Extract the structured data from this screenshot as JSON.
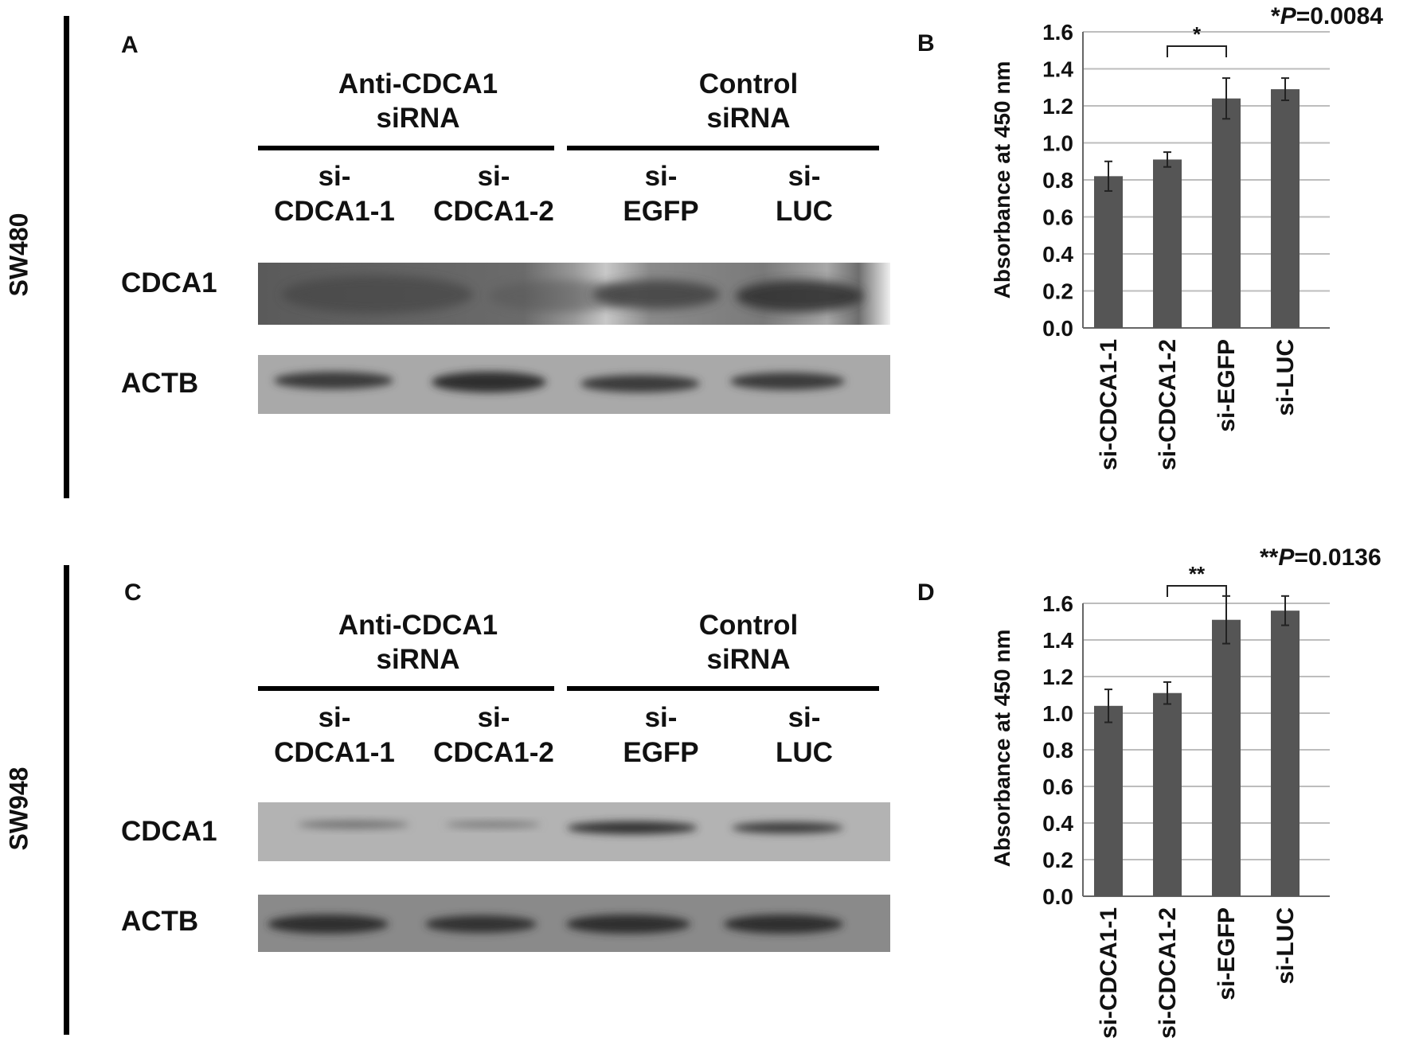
{
  "top": {
    "cell_line": "SW480",
    "panel_blot": "A",
    "panel_chart": "B",
    "group_left": [
      "Anti-CDCA1",
      "siRNA"
    ],
    "group_right": [
      "Control",
      "siRNA"
    ],
    "lanes": [
      [
        "si-",
        "CDCA1-1"
      ],
      [
        "si-",
        "CDCA1-2"
      ],
      [
        "si-",
        "EGFP"
      ],
      [
        "si-",
        "LUC"
      ]
    ],
    "rows": [
      "CDCA1",
      "ACTB"
    ],
    "pvalue": {
      "stars": "*",
      "p": "P",
      "rest": "=0.0084"
    },
    "bracket_label": "*"
  },
  "bottom": {
    "cell_line": "SW948",
    "panel_blot": "C",
    "panel_chart": "D",
    "group_left": [
      "Anti-CDCA1",
      "siRNA"
    ],
    "group_right": [
      "Control",
      "siRNA"
    ],
    "lanes": [
      [
        "si-",
        "CDCA1-1"
      ],
      [
        "si-",
        "CDCA1-2"
      ],
      [
        "si-",
        "EGFP"
      ],
      [
        "si-",
        "LUC"
      ]
    ],
    "rows": [
      "CDCA1",
      "ACTB"
    ],
    "pvalue": {
      "stars": "**",
      "p": "P",
      "rest": "=0.0136"
    },
    "bracket_label": "**"
  },
  "chart_data": [
    {
      "type": "bar",
      "panel": "B",
      "categories": [
        "si-CDCA1-1",
        "si-CDCA1-2",
        "si-EGFP",
        "si-LUC"
      ],
      "values": [
        0.82,
        0.91,
        1.24,
        1.29
      ],
      "errors": [
        0.08,
        0.04,
        0.11,
        0.06
      ],
      "ylabel": "Absorbance at 450 nm",
      "ylim": [
        0,
        1.6
      ],
      "yticks": [
        "0.0",
        "0.2",
        "0.4",
        "0.6",
        "0.8",
        "1.0",
        "1.2",
        "1.4",
        "1.6"
      ],
      "grid": true,
      "bar_color": "#555555",
      "significance": {
        "from": "si-CDCA1-2",
        "to": "si-EGFP",
        "label": "*"
      }
    },
    {
      "type": "bar",
      "panel": "D",
      "categories": [
        "si-CDCA1-1",
        "si-CDCA1-2",
        "si-EGFP",
        "si-LUC"
      ],
      "values": [
        1.04,
        1.11,
        1.51,
        1.56
      ],
      "errors": [
        0.09,
        0.06,
        0.13,
        0.08
      ],
      "ylabel": "Absorbance at 450 nm",
      "ylim": [
        0,
        1.6
      ],
      "yticks": [
        "0.0",
        "0.2",
        "0.4",
        "0.6",
        "0.8",
        "1.0",
        "1.2",
        "1.4",
        "1.6"
      ],
      "grid": true,
      "bar_color": "#555555",
      "significance": {
        "from": "si-CDCA1-2",
        "to": "si-EGFP",
        "label": "**"
      }
    }
  ]
}
